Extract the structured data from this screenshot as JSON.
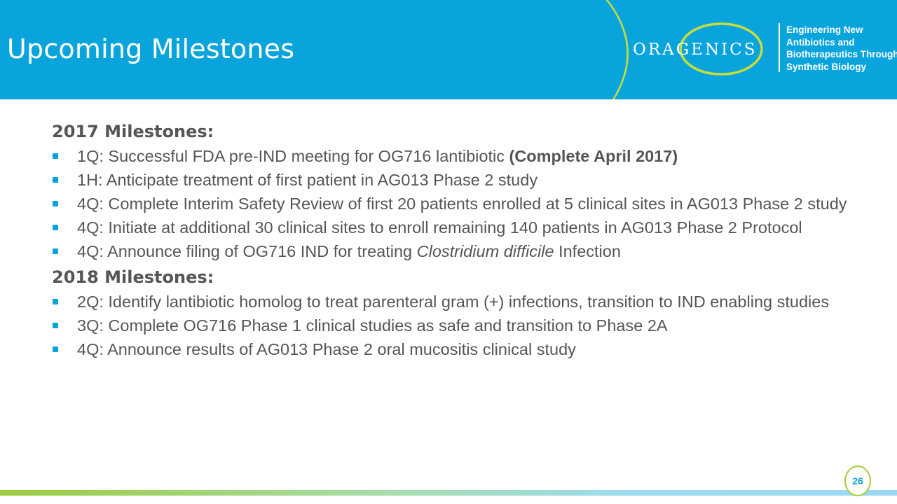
{
  "header": {
    "title": "Upcoming Milestones",
    "logo_text": "ORAGENICS",
    "tagline": [
      "Engineering New",
      "Antibiotics and",
      "Biotherapeutics Through",
      "Synthetic Biology"
    ]
  },
  "sections": [
    {
      "heading": "2017 Milestones:",
      "items": [
        {
          "text": "1Q: Successful FDA pre-IND meeting for OG716 lantibiotic ",
          "bold": "(Complete April 2017)"
        },
        {
          "text": "1H: Anticipate treatment of first patient in AG013 Phase 2 study"
        },
        {
          "text": "4Q: Complete Interim Safety Review of first 20 patients enrolled at 5 clinical sites in AG013 Phase 2 study"
        },
        {
          "text": "4Q: Initiate at additional 30 clinical sites to enroll remaining 140 patients  in AG013 Phase 2 Protocol"
        },
        {
          "text": "4Q: Announce filing of OG716 IND for treating ",
          "italic": "Clostridium difficile",
          "after": " Infection"
        }
      ]
    },
    {
      "heading": "2018 Milestones:",
      "items": [
        {
          "text": "2Q: Identify lantibiotic homolog to treat parenteral gram (+) infections, transition to IND enabling studies"
        },
        {
          "text": "3Q: Complete OG716 Phase 1 clinical studies as safe and transition to Phase 2A"
        },
        {
          "text": "4Q: Announce results of AG013 Phase 2 oral mucositis clinical study"
        }
      ]
    }
  ],
  "footer": {
    "page_number": "26"
  },
  "colors": {
    "brand_blue": "#0aa4dc",
    "brand_green": "#c8dc3c",
    "text": "#555555"
  }
}
